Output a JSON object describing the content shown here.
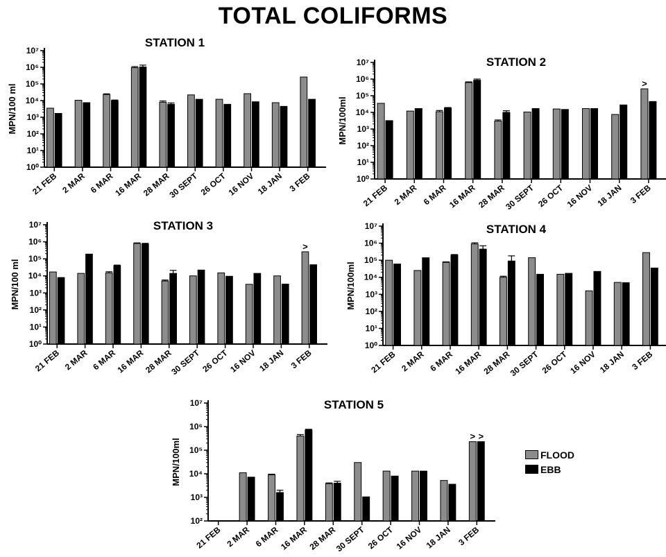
{
  "title": "TOTAL COLIFORMS",
  "legend": {
    "flood": {
      "label": "FLOOD",
      "color": "#8c8c8c"
    },
    "ebb": {
      "label": "EBB",
      "color": "#000000"
    }
  },
  "chart_data": [
    {
      "type": "bar",
      "title": "STATION 1",
      "ylabel": "MPN/100 ml",
      "yscale": "log",
      "ylim": [
        1,
        10000000
      ],
      "yticks": [
        "10^0",
        "10^1",
        "10^2",
        "10^3",
        "10^4",
        "10^5",
        "10^6",
        "10^7"
      ],
      "categories": [
        "21 FEB",
        "2 MAR",
        "6 MAR",
        "16 MAR",
        "28 MAR",
        "30 SEPT",
        "26 OCT",
        "16 NOV",
        "18 JAN",
        "3 FEB"
      ],
      "series": [
        {
          "name": "FLOOD",
          "values": [
            3500,
            10500,
            23000,
            950000,
            8000,
            22000,
            12000,
            26000,
            7500,
            260000
          ],
          "error": [
            null,
            null,
            2500,
            150000,
            1500,
            null,
            null,
            null,
            null,
            null
          ]
        },
        {
          "name": "EBB",
          "values": [
            1700,
            7500,
            10000,
            1050000,
            6000,
            12000,
            6000,
            8500,
            4500,
            12000
          ],
          "error": [
            null,
            null,
            800,
            300000,
            1200,
            null,
            null,
            null,
            null,
            null
          ]
        }
      ],
      "annotations": []
    },
    {
      "type": "bar",
      "title": "STATION 2",
      "ylabel": "MPN/100ml",
      "yscale": "log",
      "ylim": [
        1,
        10000000
      ],
      "yticks": [
        "10^0",
        "10^1",
        "10^2",
        "10^3",
        "10^4",
        "10^5",
        "10^6",
        "10^7"
      ],
      "categories": [
        "21 FEB",
        "2 MAR",
        "6 MAR",
        "16 MAR",
        "28 MAR",
        "30 SEPT",
        "26 OCT",
        "16 NOV",
        "18 JAN",
        "3 FEB"
      ],
      "series": [
        {
          "name": "FLOOD",
          "values": [
            35000,
            12000,
            11000,
            620000,
            3000,
            10500,
            16000,
            17000,
            7500,
            260000
          ],
          "error": [
            null,
            null,
            2000,
            60000,
            500,
            null,
            null,
            null,
            null,
            null
          ]
        },
        {
          "name": "EBB",
          "values": [
            3200,
            17000,
            18000,
            850000,
            10000,
            17000,
            15000,
            17000,
            28000,
            45000
          ],
          "error": [
            null,
            null,
            1500,
            150000,
            2500,
            null,
            null,
            null,
            null,
            null
          ]
        }
      ],
      "annotations": [
        {
          "category": "3 FEB",
          "series": "FLOOD",
          "text": ">"
        }
      ]
    },
    {
      "type": "bar",
      "title": "STATION 3",
      "ylabel": "MPN/100 ml",
      "yscale": "log",
      "ylim": [
        1,
        10000000
      ],
      "yticks": [
        "10^0",
        "10^1",
        "10^2",
        "10^3",
        "10^4",
        "10^5",
        "10^6",
        "10^7"
      ],
      "categories": [
        "21 FEB",
        "2 MAR",
        "6 MAR",
        "16 MAR",
        "28 MAR",
        "30 SEPT",
        "26 OCT",
        "16 NOV",
        "18 JAN",
        "3 FEB"
      ],
      "series": [
        {
          "name": "FLOOD",
          "values": [
            17000,
            14000,
            15000,
            800000,
            5000,
            10000,
            15000,
            3200,
            10000,
            260000
          ],
          "error": [
            null,
            null,
            2500,
            60000,
            700,
            null,
            null,
            null,
            null,
            null
          ]
        },
        {
          "name": "EBB",
          "values": [
            8000,
            190000,
            40000,
            750000,
            14000,
            22000,
            9500,
            14000,
            3300,
            45000
          ],
          "error": [
            null,
            null,
            3000,
            60000,
            7000,
            null,
            null,
            null,
            null,
            null
          ]
        }
      ],
      "annotations": [
        {
          "category": "3 FEB",
          "series": "FLOOD",
          "text": ">"
        }
      ]
    },
    {
      "type": "bar",
      "title": "STATION 4",
      "ylabel": "MPN/100ml",
      "yscale": "log",
      "ylim": [
        1,
        10000000
      ],
      "yticks": [
        "10^0",
        "10^1",
        "10^2",
        "10^3",
        "10^4",
        "10^5",
        "10^6",
        "10^7"
      ],
      "categories": [
        "21 FEB",
        "2 MAR",
        "6 MAR",
        "16 MAR",
        "28 MAR",
        "30 SEPT",
        "26 OCT",
        "16 NOV",
        "18 JAN",
        "3 FEB"
      ],
      "series": [
        {
          "name": "FLOOD",
          "values": [
            100000,
            25000,
            75000,
            900000,
            10000,
            140000,
            15000,
            1600,
            5000,
            280000
          ],
          "error": [
            null,
            null,
            5000,
            150000,
            1500,
            null,
            null,
            null,
            null,
            null
          ]
        },
        {
          "name": "EBB",
          "values": [
            60000,
            140000,
            200000,
            450000,
            90000,
            15000,
            17000,
            22000,
            4800,
            35000
          ],
          "error": [
            null,
            null,
            15000,
            250000,
            90000,
            null,
            null,
            null,
            null,
            null
          ]
        }
      ],
      "annotations": []
    },
    {
      "type": "bar",
      "title": "STATION 5",
      "ylabel": "MPN/100ml",
      "yscale": "log",
      "ylim": [
        100,
        10000000
      ],
      "yticks": [
        "10^2",
        "10^3",
        "10^4",
        "10^5",
        "10^6",
        "10^7"
      ],
      "categories": [
        "21 FEB",
        "2 MAR",
        "6 MAR",
        "16 MAR",
        "28 MAR",
        "30 SEPT",
        "26 OCT",
        "16 NOV",
        "18 JAN",
        "3 FEB"
      ],
      "series": [
        {
          "name": "FLOOD",
          "values": [
            null,
            11000,
            9000,
            400000,
            3800,
            30000,
            13000,
            13000,
            5200,
            230000
          ],
          "error": [
            null,
            null,
            600,
            60000,
            300,
            null,
            null,
            null,
            null,
            null
          ]
        },
        {
          "name": "EBB",
          "values": [
            null,
            7200,
            1600,
            720000,
            4000,
            1050,
            8000,
            13000,
            3600,
            230000
          ],
          "error": [
            null,
            null,
            400,
            50000,
            800,
            null,
            null,
            null,
            null,
            null
          ]
        }
      ],
      "annotations": [
        {
          "category": "3 FEB",
          "series": "FLOOD",
          "text": ">"
        },
        {
          "category": "3 FEB",
          "series": "EBB",
          "text": ">"
        }
      ]
    }
  ]
}
